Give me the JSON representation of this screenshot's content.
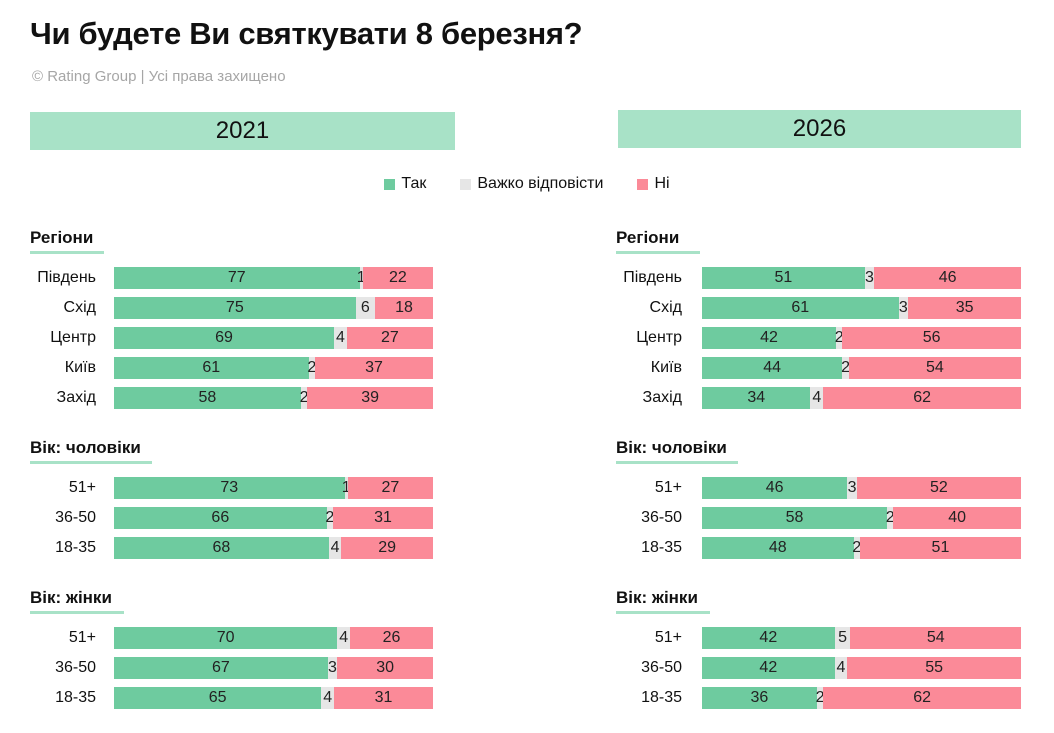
{
  "title": "Чи будете Ви святкувати 8 березня?",
  "credit": "© Rating Group | Усі права захищено",
  "colors": {
    "yes": "#6ecb9f",
    "hard": "#e6e6e6",
    "no": "#fb8a98",
    "band": "#a8e2c7"
  },
  "legend": [
    {
      "key": "yes",
      "label": "Так"
    },
    {
      "key": "hard",
      "label": "Важко відповісти"
    },
    {
      "key": "no",
      "label": "Ні"
    }
  ],
  "chart_data": [
    {
      "type": "bar",
      "title": "2021",
      "stacked": true,
      "groups": [
        {
          "name": "Регіони",
          "categories": [
            "Південь",
            "Схід",
            "Центр",
            "Київ",
            "Захід"
          ],
          "series": [
            {
              "name": "Так",
              "values": [
                77,
                75,
                69,
                61,
                58
              ]
            },
            {
              "name": "Важко відповісти",
              "values": [
                1,
                6,
                4,
                2,
                2
              ]
            },
            {
              "name": "Ні",
              "values": [
                22,
                18,
                27,
                37,
                39
              ]
            }
          ]
        },
        {
          "name": "Вік: чоловіки",
          "categories": [
            "51+",
            "36-50",
            "18-35"
          ],
          "series": [
            {
              "name": "Так",
              "values": [
                73,
                66,
                68
              ]
            },
            {
              "name": "Важко відповісти",
              "values": [
                1,
                2,
                4
              ]
            },
            {
              "name": "Ні",
              "values": [
                27,
                31,
                29
              ]
            }
          ]
        },
        {
          "name": "Вік: жінки",
          "categories": [
            "51+",
            "36-50",
            "18-35"
          ],
          "series": [
            {
              "name": "Так",
              "values": [
                70,
                67,
                65
              ]
            },
            {
              "name": "Важко відповісти",
              "values": [
                4,
                3,
                4
              ]
            },
            {
              "name": "Ні",
              "values": [
                26,
                30,
                31
              ]
            }
          ]
        }
      ]
    },
    {
      "type": "bar",
      "title": "2026",
      "stacked": true,
      "groups": [
        {
          "name": "Регіони",
          "categories": [
            "Південь",
            "Схід",
            "Центр",
            "Київ",
            "Захід"
          ],
          "series": [
            {
              "name": "Так",
              "values": [
                51,
                61,
                42,
                44,
                34
              ]
            },
            {
              "name": "Важко відповісти",
              "values": [
                3,
                3,
                2,
                2,
                4
              ]
            },
            {
              "name": "Ні",
              "values": [
                46,
                35,
                56,
                54,
                62
              ]
            }
          ]
        },
        {
          "name": "Вік: чоловіки",
          "categories": [
            "51+",
            "36-50",
            "18-35"
          ],
          "series": [
            {
              "name": "Так",
              "values": [
                46,
                58,
                48
              ]
            },
            {
              "name": "Важко відповісти",
              "values": [
                3,
                2,
                2
              ]
            },
            {
              "name": "Ні",
              "values": [
                52,
                40,
                51
              ]
            }
          ]
        },
        {
          "name": "Вік: жінки",
          "categories": [
            "51+",
            "36-50",
            "18-35"
          ],
          "series": [
            {
              "name": "Так",
              "values": [
                42,
                42,
                36
              ]
            },
            {
              "name": "Важко відповісти",
              "values": [
                5,
                4,
                2
              ]
            },
            {
              "name": "Ні",
              "values": [
                54,
                55,
                62
              ]
            }
          ]
        }
      ]
    }
  ]
}
